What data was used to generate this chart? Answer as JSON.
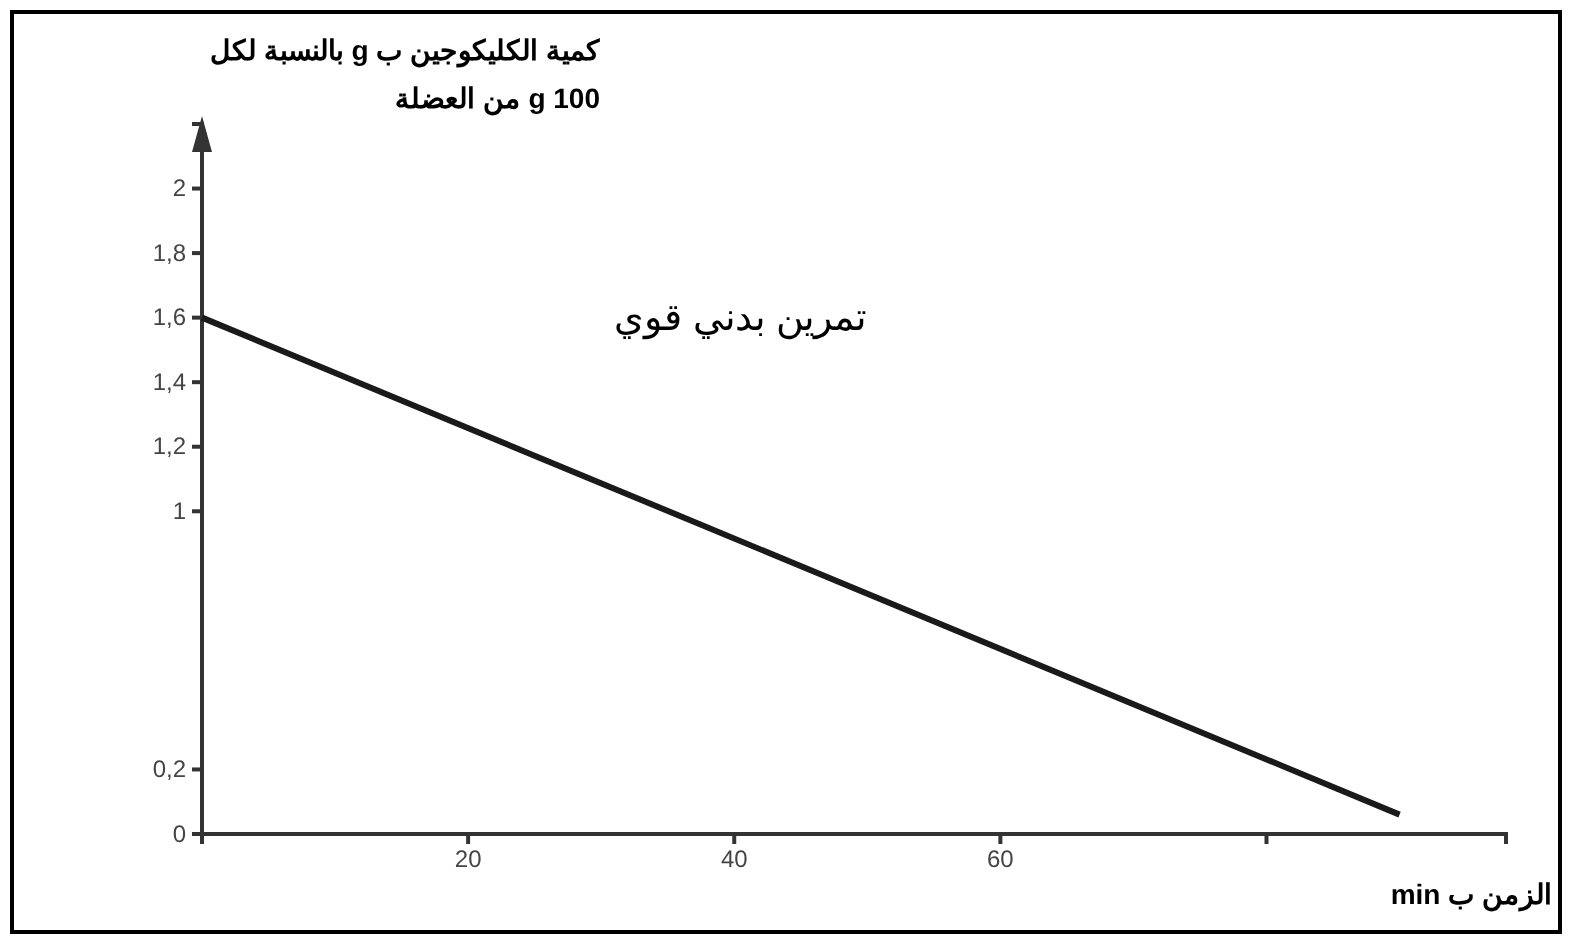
{
  "chart_data": {
    "type": "line",
    "ylabel": "كمية الكليكوجين ب  g بالنسبة لكل\n100 g من العضلة",
    "xlabel": "الزمن ب min",
    "annotations": [
      "تمرين بدني قوي"
    ],
    "x": [
      0,
      90
    ],
    "series": [
      {
        "color": "#1a1a1a",
        "values": [
          1.6,
          0.06
        ]
      }
    ],
    "xlim": [
      0,
      98
    ],
    "ylim": [
      0,
      2.2
    ],
    "xticks": [
      20,
      40,
      60,
      {
        "value": 80,
        "label": null
      }
    ],
    "yticks": [
      0,
      {
        "value": 0.2,
        "label": "0,2"
      },
      1,
      {
        "value": 1.2,
        "label": "1,2"
      },
      {
        "value": 1.4,
        "label": "1,4"
      },
      {
        "value": 1.6,
        "label": "1,6"
      },
      {
        "value": 1.8,
        "label": "1,8"
      },
      2
    ],
    "grid": false,
    "marker": "none",
    "line_style": "solid"
  }
}
